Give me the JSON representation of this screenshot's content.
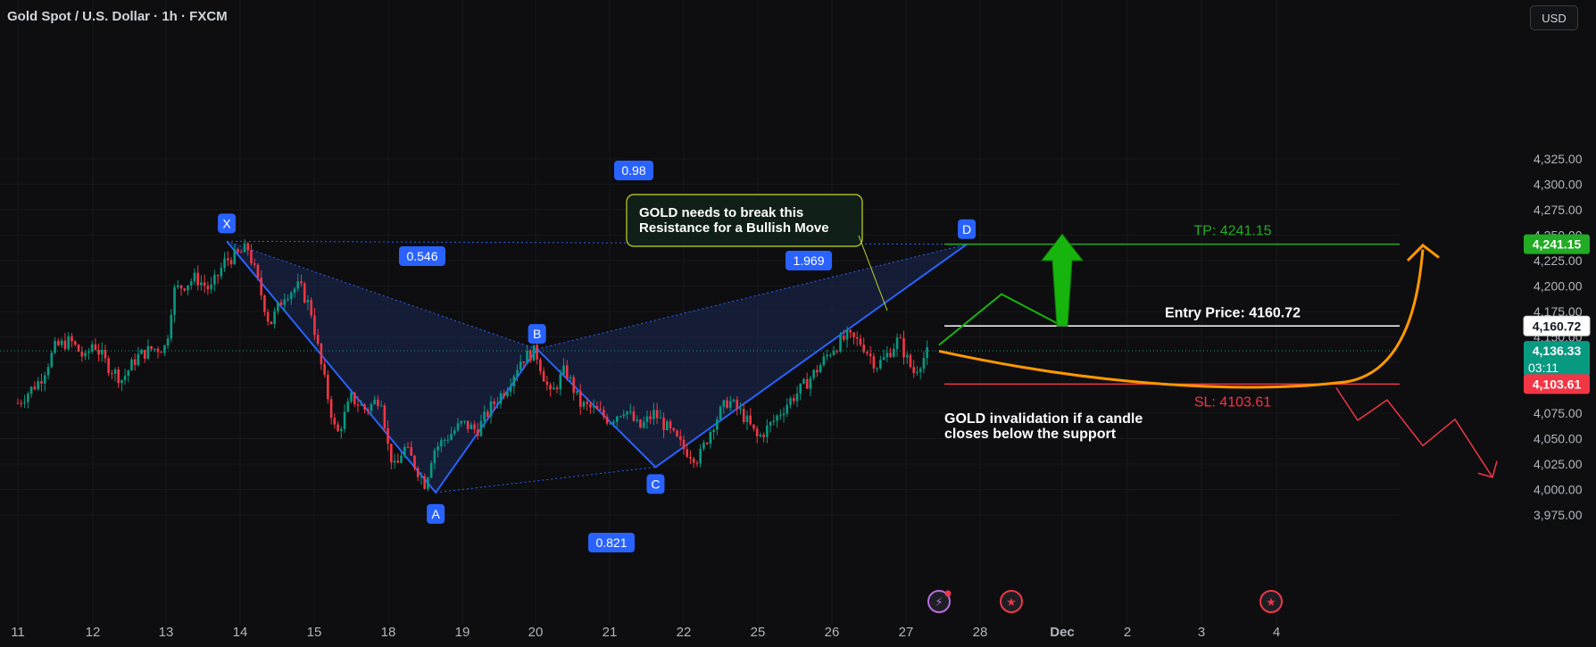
{
  "header": {
    "title": "Gold Spot / U.S. Dollar · 1h · FXCM",
    "currency": "USD"
  },
  "chart_data": {
    "type": "candlestick",
    "symbol": "XAUUSD",
    "timeframe": "1h",
    "ylim": [
      3962,
      4333
    ],
    "y_ticks": [
      3975,
      4000,
      4025,
      4050,
      4075,
      4100,
      4125,
      4150,
      4175,
      4200,
      4225,
      4250,
      4275,
      4300,
      4325
    ],
    "y_tick_labels": [
      "3,975.00",
      "4,000.00",
      "4,025.00",
      "4,050.00",
      "4,075.00",
      "4,100.00",
      "4,125.00",
      "4,150.00",
      "4,175.00",
      "4,200.00",
      "4,225.00",
      "4,250.00",
      "4,275.00",
      "4,300.00",
      "4,325.00"
    ],
    "x_ticks": [
      {
        "label": "11",
        "day": 0
      },
      {
        "label": "12",
        "day": 1
      },
      {
        "label": "13",
        "day": 2
      },
      {
        "label": "14",
        "day": 3
      },
      {
        "label": "15",
        "day": 4
      },
      {
        "label": "18",
        "day": 5
      },
      {
        "label": "19",
        "day": 6
      },
      {
        "label": "20",
        "day": 7
      },
      {
        "label": "21",
        "day": 8
      },
      {
        "label": "22",
        "day": 9
      },
      {
        "label": "25",
        "day": 10
      },
      {
        "label": "26",
        "day": 11
      },
      {
        "label": "27",
        "day": 12
      },
      {
        "label": "28",
        "day": 13
      },
      {
        "label": "Dec",
        "day": 14
      },
      {
        "label": "2",
        "day": 15
      },
      {
        "label": "3",
        "day": 16
      },
      {
        "label": "4",
        "day": 17
      }
    ],
    "price_path": [
      [
        0.0,
        4085
      ],
      [
        0.3,
        4108
      ],
      [
        0.5,
        4140
      ],
      [
        0.7,
        4146
      ],
      [
        0.9,
        4128
      ],
      [
        1.0,
        4145
      ],
      [
        1.2,
        4122
      ],
      [
        1.4,
        4108
      ],
      [
        1.6,
        4130
      ],
      [
        1.8,
        4138
      ],
      [
        2.0,
        4140
      ],
      [
        2.1,
        4195
      ],
      [
        2.4,
        4208
      ],
      [
        2.6,
        4196
      ],
      [
        2.8,
        4225
      ],
      [
        3.0,
        4232
      ],
      [
        3.1,
        4238
      ],
      [
        3.2,
        4214
      ],
      [
        3.4,
        4162
      ],
      [
        3.6,
        4192
      ],
      [
        3.8,
        4200
      ],
      [
        3.95,
        4178
      ],
      [
        4.1,
        4120
      ],
      [
        4.3,
        4052
      ],
      [
        4.5,
        4090
      ],
      [
        4.7,
        4078
      ],
      [
        4.9,
        4092
      ],
      [
        5.0,
        4040
      ],
      [
        5.1,
        4018
      ],
      [
        5.2,
        4042
      ],
      [
        5.3,
        4032
      ],
      [
        5.5,
        4005
      ],
      [
        5.6,
        4038
      ],
      [
        5.8,
        4052
      ],
      [
        6.0,
        4065
      ],
      [
        6.2,
        4058
      ],
      [
        6.4,
        4082
      ],
      [
        6.6,
        4100
      ],
      [
        6.8,
        4128
      ],
      [
        7.0,
        4136
      ],
      [
        7.2,
        4092
      ],
      [
        7.4,
        4118
      ],
      [
        7.6,
        4084
      ],
      [
        7.8,
        4078
      ],
      [
        8.0,
        4068
      ],
      [
        8.2,
        4080
      ],
      [
        8.4,
        4060
      ],
      [
        8.6,
        4075
      ],
      [
        8.8,
        4058
      ],
      [
        9.0,
        4040
      ],
      [
        9.2,
        4030
      ],
      [
        9.4,
        4065
      ],
      [
        9.6,
        4088
      ],
      [
        9.8,
        4073
      ],
      [
        10.0,
        4050
      ],
      [
        10.2,
        4066
      ],
      [
        10.4,
        4085
      ],
      [
        10.6,
        4100
      ],
      [
        10.8,
        4118
      ],
      [
        11.0,
        4138
      ],
      [
        11.2,
        4150
      ],
      [
        11.4,
        4144
      ],
      [
        11.6,
        4122
      ],
      [
        11.7,
        4128
      ],
      [
        11.8,
        4138
      ],
      [
        11.9,
        4148
      ],
      [
        12.0,
        4130
      ],
      [
        12.1,
        4115
      ],
      [
        12.2,
        4126
      ],
      [
        12.3,
        4135
      ]
    ],
    "harmonic_pattern": {
      "points": [
        {
          "label": "X",
          "day": 2.82,
          "price": 4244
        },
        {
          "label": "A",
          "day": 5.64,
          "price": 3997
        },
        {
          "label": "B",
          "day": 7.02,
          "price": 4138
        },
        {
          "label": "C",
          "day": 8.62,
          "price": 4022
        },
        {
          "label": "D",
          "day": 12.82,
          "price": 4241
        }
      ],
      "ratios": [
        {
          "label": "0.546",
          "between": "XA-B"
        },
        {
          "label": "0.821",
          "between": "AB-C"
        },
        {
          "label": "1.969",
          "between": "BC-D"
        },
        {
          "label": "0.98",
          "between": "XA-D"
        }
      ]
    },
    "levels": [
      {
        "name": "take-profit",
        "price": 4241.15,
        "price_label": "4,241.15",
        "color": "#22ab24",
        "text": "TP: 4241.15"
      },
      {
        "name": "entry",
        "price": 4160.72,
        "price_label": "4,160.72",
        "color": "#ffffff",
        "text": "Entry Price: 4160.72"
      },
      {
        "name": "stop-loss",
        "price": 4103.61,
        "price_label": "4,103.61",
        "color": "#f23645",
        "text": "SL: 4103.61"
      }
    ],
    "current_price": {
      "price": 4136.33,
      "label": "4,136.33",
      "countdown": "03:11",
      "color": "#089981"
    },
    "annotations": [
      {
        "name": "resistance-note",
        "text_line1": "GOLD needs to break this",
        "text_line2": "Resistance for a Bullish Move"
      },
      {
        "name": "invalidation-note",
        "text_line1": "GOLD invalidation if a candle",
        "text_line2": "closes below the support"
      }
    ],
    "colors": {
      "up": "#089981",
      "down": "#f23645",
      "pattern_line": "#2962ff",
      "pattern_fill": "#1c2a55",
      "orange_path": "#ff9800",
      "green_arrow": "#18b40e",
      "red_path": "#f23645"
    }
  }
}
